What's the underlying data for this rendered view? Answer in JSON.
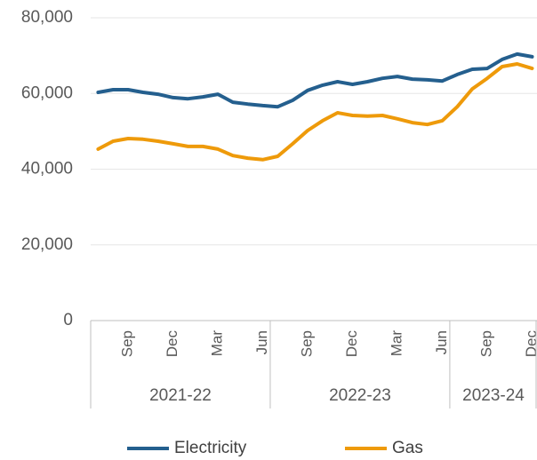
{
  "chart_data": {
    "type": "line",
    "categories": [
      null,
      null,
      "Sep",
      null,
      null,
      "Dec",
      null,
      null,
      "Mar",
      null,
      null,
      "Jun",
      null,
      null,
      "Sep",
      null,
      null,
      "Dec",
      null,
      null,
      "Mar",
      null,
      null,
      "Jun",
      null,
      null,
      "Sep",
      null,
      null,
      "Dec"
    ],
    "groups": [
      {
        "name": "2021-22",
        "size": 12
      },
      {
        "name": "2022-23",
        "size": 12
      },
      {
        "name": "2023-24",
        "size": 6
      }
    ],
    "series": [
      {
        "name": "Electricity",
        "color": "#245f8e",
        "values": [
          60300,
          61000,
          61000,
          60300,
          59800,
          58900,
          58600,
          59100,
          59800,
          57700,
          57200,
          56800,
          56500,
          58200,
          60800,
          62200,
          63100,
          62400,
          63100,
          64000,
          64500,
          63800,
          63600,
          63300,
          65000,
          66400,
          66600,
          69000,
          70400,
          69700
        ]
      },
      {
        "name": "Gas",
        "color": "#ee9a0a",
        "values": [
          45300,
          47400,
          48100,
          47900,
          47400,
          46700,
          46000,
          46000,
          45300,
          43600,
          42900,
          42500,
          43400,
          46700,
          50200,
          52800,
          54900,
          54200,
          54000,
          54200,
          53300,
          52300,
          51800,
          52800,
          56500,
          61200,
          64000,
          67100,
          67800,
          66600
        ]
      }
    ],
    "ylim": [
      0,
      80000
    ],
    "yticks": [
      {
        "value": 0,
        "label": "0"
      },
      {
        "value": 20000,
        "label": "20,000"
      },
      {
        "value": 40000,
        "label": "40,000"
      },
      {
        "value": 60000,
        "label": "60,000"
      },
      {
        "value": 80000,
        "label": "80,000"
      }
    ],
    "grid": true,
    "legend": "bottom"
  }
}
